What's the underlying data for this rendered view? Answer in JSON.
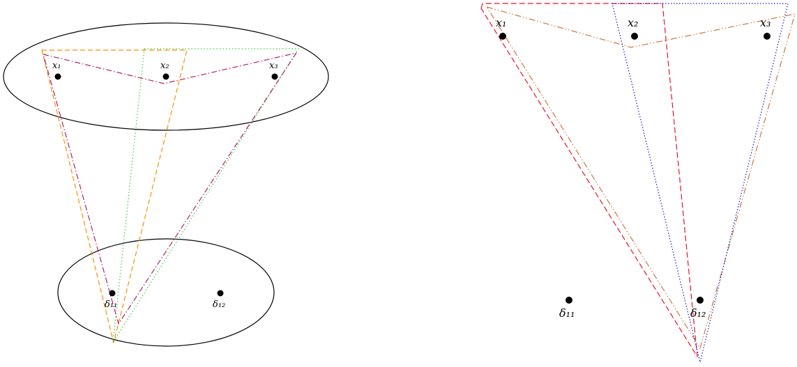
{
  "left_panel": {
    "points": [
      {
        "id": "x1",
        "label": "x₁"
      },
      {
        "id": "x2",
        "label": "x₂"
      },
      {
        "id": "x3",
        "label": "x₃"
      },
      {
        "id": "d11",
        "label": "δ₁₁"
      },
      {
        "id": "d12",
        "label": "δ₁₂"
      }
    ]
  },
  "right_panel": {
    "points": [
      {
        "id": "x1",
        "label": "x₁"
      },
      {
        "id": "x2",
        "label": "x₂"
      },
      {
        "id": "x3",
        "label": "x₃"
      },
      {
        "id": "d11",
        "label": "δ₁₁"
      },
      {
        "id": "d12",
        "label": "δ₁₂"
      }
    ]
  },
  "colors": {
    "ellipse": "#000000",
    "orange_dashed": "#ff8c00",
    "green_dotted": "#33cc33",
    "purple_dashdot": "#b0206a",
    "red_dashed": "#e8102a",
    "blue_dotted": "#1a1acc",
    "brown_dashdotdot": "#c8783c"
  }
}
